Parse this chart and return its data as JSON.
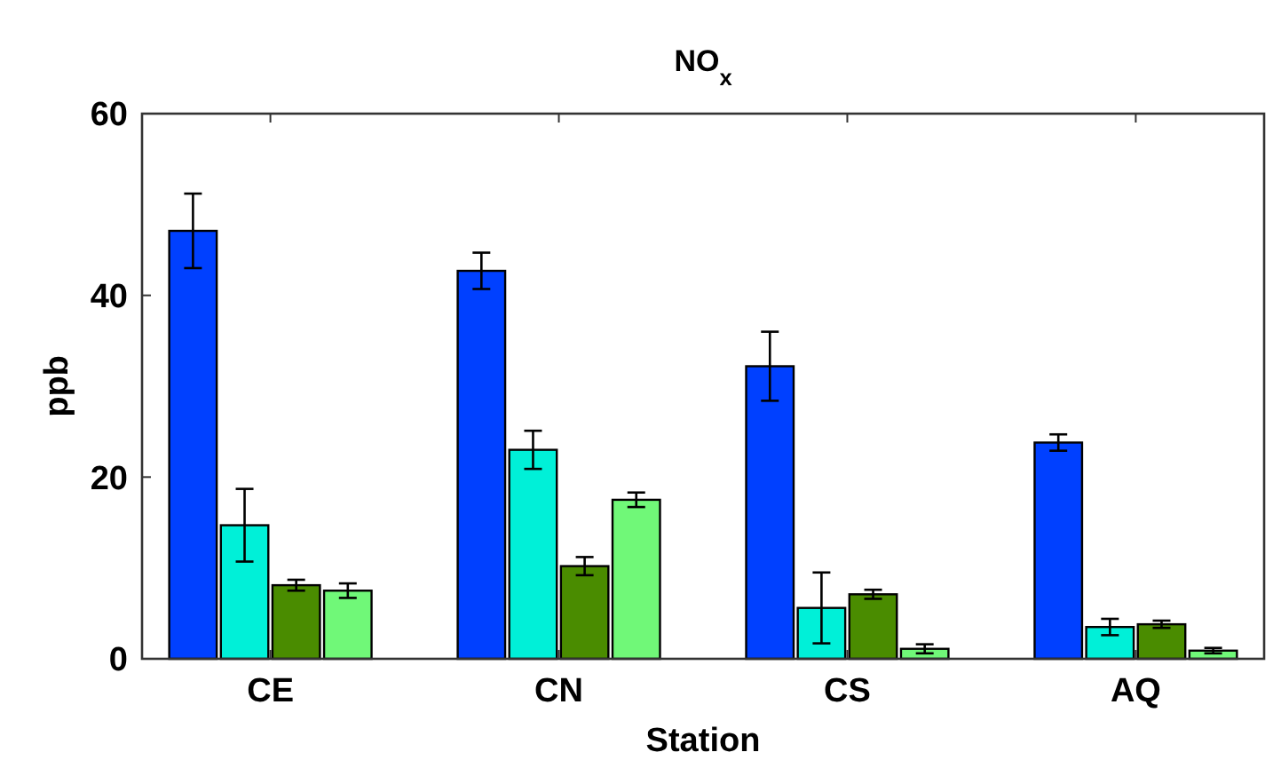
{
  "chart_data": {
    "type": "bar",
    "title": "NO$_{x}$",
    "xlabel": "Station",
    "ylabel": "ppb",
    "categories": [
      "CE",
      "CN",
      "CS",
      "AQ"
    ],
    "series": [
      {
        "color": "#0040ff",
        "values": [
          47.1,
          42.7,
          32.2,
          23.8
        ],
        "errors": [
          4.1,
          2,
          3.8,
          0.9
        ]
      },
      {
        "color": "#00f0d8",
        "values": [
          14.7,
          23.0,
          5.6,
          3.5
        ],
        "errors": [
          4,
          2.1,
          3.9,
          0.9
        ]
      },
      {
        "color": "#4a8c00",
        "values": [
          8.1,
          10.2,
          7.1,
          3.8
        ],
        "errors": [
          0.6,
          1,
          0.5,
          0.4
        ]
      },
      {
        "color": "#70f878",
        "values": [
          7.5,
          17.5,
          1.1,
          0.9
        ],
        "errors": [
          0.8,
          0.8,
          0.5,
          0.3
        ]
      }
    ],
    "ylim": [
      0,
      60
    ],
    "yticks": [
      0,
      20,
      40,
      60
    ],
    "grid": false
  }
}
